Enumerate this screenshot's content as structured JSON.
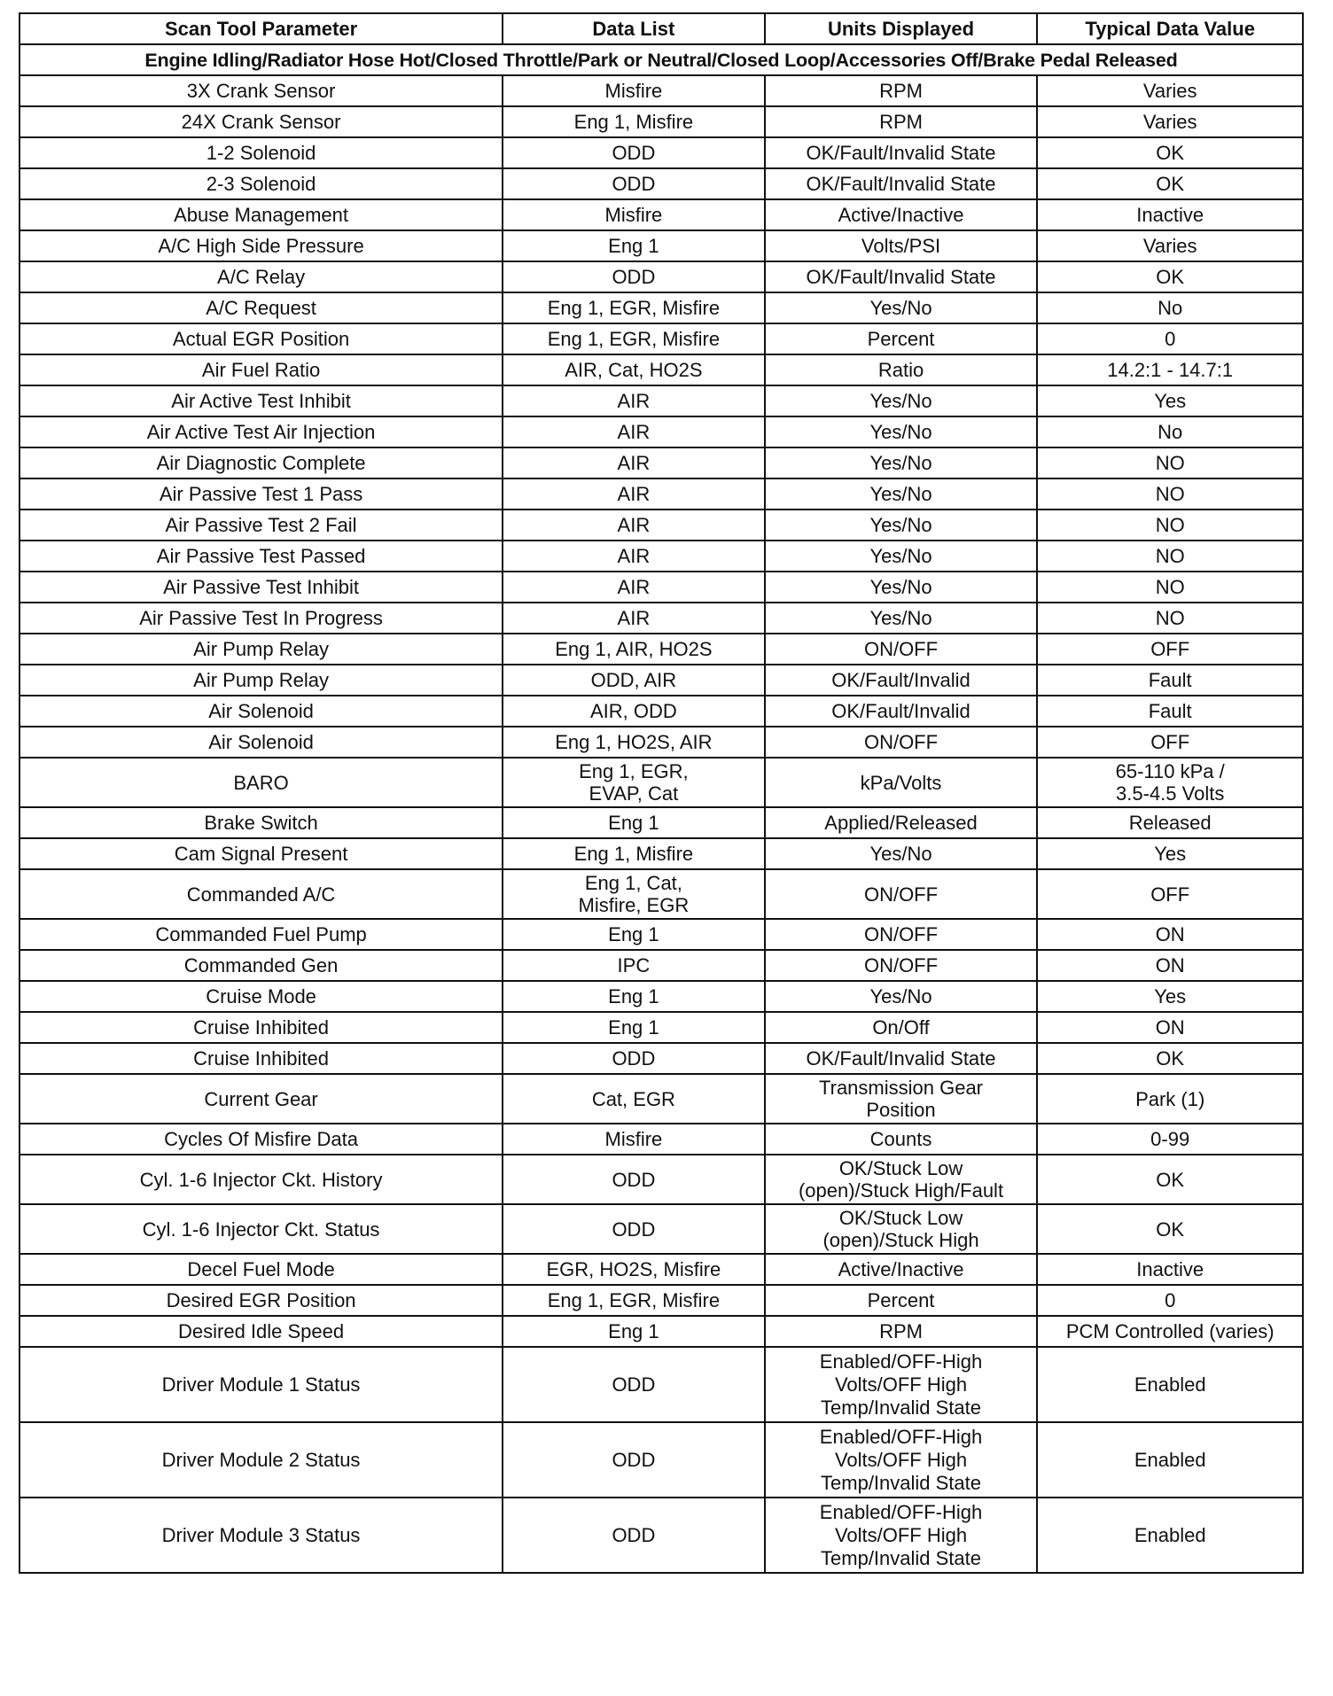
{
  "table": {
    "headers": [
      "Scan Tool Parameter",
      "Data List",
      "Units Displayed",
      "Typical Data Value"
    ],
    "condition": "Engine Idling/Radiator Hose Hot/Closed Throttle/Park or Neutral/Closed Loop/Accessories Off/Brake Pedal Released",
    "rows": [
      [
        "3X Crank Sensor",
        "Misfire",
        "RPM",
        "Varies"
      ],
      [
        "24X Crank Sensor",
        "Eng 1, Misfire",
        "RPM",
        "Varies"
      ],
      [
        "1-2 Solenoid",
        "ODD",
        "OK/Fault/Invalid State",
        "OK"
      ],
      [
        "2-3 Solenoid",
        "ODD",
        "OK/Fault/Invalid State",
        "OK"
      ],
      [
        "Abuse Management",
        "Misfire",
        "Active/Inactive",
        "Inactive"
      ],
      [
        "A/C High Side Pressure",
        "Eng 1",
        "Volts/PSI",
        "Varies"
      ],
      [
        "A/C Relay",
        "ODD",
        "OK/Fault/Invalid State",
        "OK"
      ],
      [
        "A/C Request",
        "Eng 1, EGR, Misfire",
        "Yes/No",
        "No"
      ],
      [
        "Actual EGR Position",
        "Eng 1, EGR, Misfire",
        "Percent",
        "0"
      ],
      [
        "Air Fuel Ratio",
        "AIR, Cat, HO2S",
        "Ratio",
        "14.2:1 - 14.7:1"
      ],
      [
        "Air Active Test Inhibit",
        "AIR",
        "Yes/No",
        "Yes"
      ],
      [
        "Air Active Test Air Injection",
        "AIR",
        "Yes/No",
        "No"
      ],
      [
        "Air Diagnostic Complete",
        "AIR",
        "Yes/No",
        "NO"
      ],
      [
        "Air Passive Test 1 Pass",
        "AIR",
        "Yes/No",
        "NO"
      ],
      [
        "Air Passive Test 2 Fail",
        "AIR",
        "Yes/No",
        "NO"
      ],
      [
        "Air Passive Test Passed",
        "AIR",
        "Yes/No",
        "NO"
      ],
      [
        "Air Passive Test Inhibit",
        "AIR",
        "Yes/No",
        "NO"
      ],
      [
        "Air Passive Test In Progress",
        "AIR",
        "Yes/No",
        "NO"
      ],
      [
        "Air Pump Relay",
        "Eng 1, AIR, HO2S",
        "ON/OFF",
        "OFF"
      ],
      [
        "Air Pump Relay",
        "ODD, AIR",
        "OK/Fault/Invalid",
        "Fault"
      ],
      [
        "Air Solenoid",
        "AIR, ODD",
        "OK/Fault/Invalid",
        "Fault"
      ],
      [
        "Air Solenoid",
        "Eng 1, HO2S, AIR",
        "ON/OFF",
        "OFF"
      ],
      [
        "BARO",
        "Eng 1, EGR,\nEVAP, Cat",
        "kPa/Volts",
        "65-110 kPa /\n3.5-4.5 Volts"
      ],
      [
        "Brake Switch",
        "Eng 1",
        "Applied/Released",
        "Released"
      ],
      [
        "Cam Signal Present",
        "Eng 1, Misfire",
        "Yes/No",
        "Yes"
      ],
      [
        "Commanded A/C",
        "Eng 1, Cat,\nMisfire, EGR",
        "ON/OFF",
        "OFF"
      ],
      [
        "Commanded Fuel Pump",
        "Eng 1",
        "ON/OFF",
        "ON"
      ],
      [
        "Commanded Gen",
        "IPC",
        "ON/OFF",
        "ON"
      ],
      [
        "Cruise Mode",
        "Eng 1",
        "Yes/No",
        "Yes"
      ],
      [
        "Cruise Inhibited",
        "Eng 1",
        "On/Off",
        "ON"
      ],
      [
        "Cruise Inhibited",
        "ODD",
        "OK/Fault/Invalid State",
        "OK"
      ],
      [
        "Current Gear",
        "Cat, EGR",
        "Transmission Gear\nPosition",
        "Park (1)"
      ],
      [
        "Cycles Of Misfire Data",
        "Misfire",
        "Counts",
        "0-99"
      ],
      [
        "Cyl. 1-6 Injector Ckt. History",
        "ODD",
        "OK/Stuck Low\n(open)/Stuck High/Fault",
        "OK"
      ],
      [
        "Cyl. 1-6 Injector Ckt. Status",
        "ODD",
        "OK/Stuck Low\n(open)/Stuck High",
        "OK"
      ],
      [
        "Decel Fuel Mode",
        "EGR, HO2S, Misfire",
        "Active/Inactive",
        "Inactive"
      ],
      [
        "Desired EGR Position",
        "Eng 1, EGR, Misfire",
        "Percent",
        "0"
      ],
      [
        "Desired Idle Speed",
        "Eng 1",
        "RPM",
        "PCM Controlled (varies)"
      ],
      [
        "Driver Module 1 Status",
        "ODD",
        "Enabled/OFF-High\nVolts/OFF High\nTemp/Invalid State",
        "Enabled"
      ],
      [
        "Driver Module 2 Status",
        "ODD",
        "Enabled/OFF-High\nVolts/OFF High\nTemp/Invalid State",
        "Enabled"
      ],
      [
        "Driver Module 3 Status",
        "ODD",
        "Enabled/OFF-High\nVolts/OFF High\nTemp/Invalid State",
        "Enabled"
      ]
    ]
  }
}
